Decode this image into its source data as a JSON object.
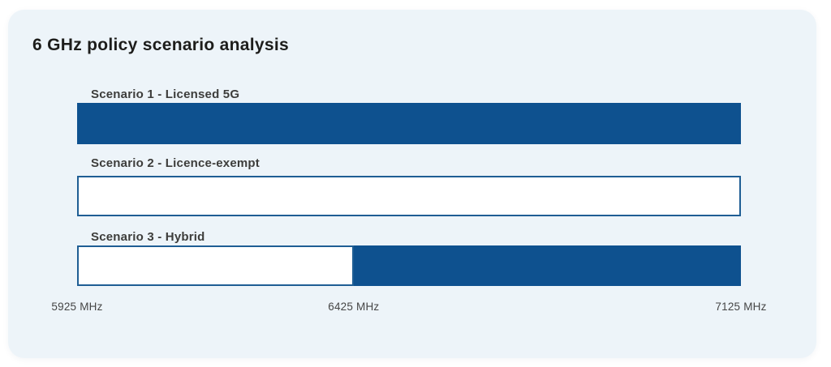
{
  "card": {
    "title": "6 GHz policy scenario analysis"
  },
  "chart_data": {
    "type": "bar",
    "title": "6 GHz policy scenario analysis",
    "orientation": "horizontal",
    "axis": {
      "min": 5925,
      "max": 7125,
      "unit": "MHz",
      "tick_values": [
        5925,
        6425,
        7125
      ],
      "ticks": [
        "5925 MHz",
        "6425 MHz",
        "7125 MHz"
      ]
    },
    "bars": [
      {
        "label": "Scenario 1 - Licensed 5G",
        "segments": [
          {
            "start": 5925,
            "end": 7125,
            "fill": "solid"
          }
        ]
      },
      {
        "label": "Scenario 2 - Licence-exempt",
        "segments": [
          {
            "start": 5925,
            "end": 7125,
            "fill": "outline"
          }
        ]
      },
      {
        "label": "Scenario 3 - Hybrid",
        "segments": [
          {
            "start": 5925,
            "end": 6425,
            "fill": "outline"
          },
          {
            "start": 6425,
            "end": 7125,
            "fill": "solid"
          }
        ]
      }
    ],
    "colors": {
      "solid_fill": "#0e518f",
      "outline_border": "#1f5e94",
      "outline_fill": "#ffffff",
      "card_background": "#edf4f9"
    },
    "legend": null,
    "grid": false
  }
}
